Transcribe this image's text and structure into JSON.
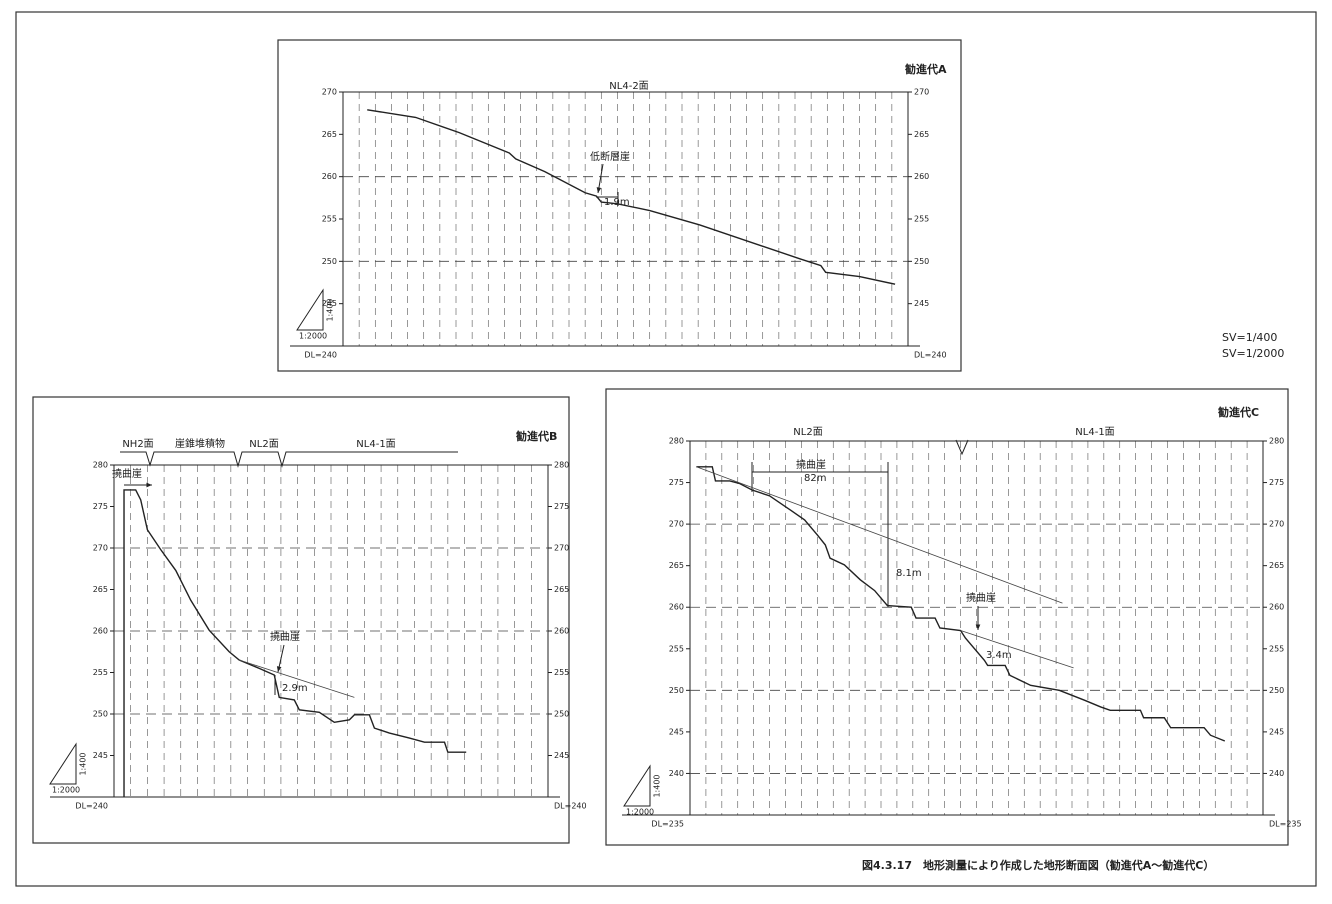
{
  "chart_data": [
    {
      "type": "line",
      "title": "勧進代A",
      "surface_labels": [
        "NL4-2面"
      ],
      "annotations": [
        "低断層崖",
        "1.9m"
      ],
      "scale_labels": [
        "1:400",
        "1:2000"
      ],
      "xlim": [
        0,
        35
      ],
      "ylim": [
        240,
        270
      ],
      "yticks": [
        {
          "value": 240,
          "label": "DL=240"
        },
        245,
        250,
        255,
        260,
        265,
        270
      ],
      "grid": true,
      "series": [
        {
          "color": "#222222",
          "x": [
            1.5,
            4.5,
            7.2,
            10.3,
            10.7,
            12.5,
            15,
            15.7,
            16,
            17,
            19,
            22.1,
            28.3,
            29.6,
            29.9,
            32,
            34.2
          ],
          "values": [
            267.9,
            267,
            265.2,
            262.8,
            262.1,
            260.6,
            258.1,
            257.7,
            257,
            256.8,
            256,
            254.3,
            250.3,
            249.5,
            248.7,
            248.2,
            247.3
          ]
        }
      ]
    },
    {
      "type": "line",
      "title": "勧進代B",
      "surface_labels": [
        "NH2面",
        "崖錐堆積物",
        "NL2面",
        "NL4-1面"
      ],
      "annotations": [
        "撓曲崖",
        "撓曲崖",
        "2.9m"
      ],
      "scale_labels": [
        "1:400",
        "1:2000"
      ],
      "xlim": [
        0,
        26
      ],
      "ylim": [
        240,
        280
      ],
      "yticks": [
        {
          "value": 240,
          "label": "DL=240"
        },
        245,
        250,
        255,
        260,
        265,
        270,
        275,
        280
      ],
      "grid": true,
      "series": [
        {
          "color": "#222222",
          "x": [
            0.6,
            0.6,
            1.3,
            1.6,
            2.0,
            2.8,
            3.7,
            4.6,
            5.7,
            6.9,
            7.5,
            8.7,
            9.6,
            9.8,
            9.9,
            10.8,
            11.1,
            12.3,
            13.2,
            14.1,
            14.4,
            15.3,
            15.6,
            16.5,
            17.7,
            18.6,
            19.8,
            20.0,
            21.1
          ],
          "values": [
            240,
            277,
            277,
            275.8,
            272.2,
            269.8,
            267.3,
            263.7,
            260.1,
            257.5,
            256.5,
            255.5,
            254.7,
            252.9,
            252.0,
            251.7,
            250.5,
            250.2,
            249.0,
            249.3,
            249.9,
            249.9,
            248.3,
            247.7,
            247.1,
            246.6,
            246.6,
            245.4,
            245.4
          ]
        },
        {
          "color": "#444444",
          "x": [
            7.5,
            14.4
          ],
          "values": [
            256.5,
            252.0
          ]
        }
      ]
    },
    {
      "type": "line",
      "title": "勧進代C",
      "surface_labels": [
        "NL2面",
        "NL4-1面"
      ],
      "annotations": [
        "撓曲崖",
        "82m",
        "8.1m",
        "撓曲崖",
        "3.4m"
      ],
      "scale_labels": [
        "1:400",
        "1:2000"
      ],
      "xlim": [
        0,
        36
      ],
      "ylim": [
        235,
        280
      ],
      "yticks": [
        {
          "value": 235,
          "label": "DL=235"
        },
        240,
        245,
        250,
        255,
        260,
        265,
        270,
        275,
        280
      ],
      "grid": true,
      "series": [
        {
          "color": "#222222",
          "x": [
            0.4,
            1.4,
            1.6,
            2.5,
            3.1,
            3.9,
            5.0,
            6.3,
            7.2,
            8.0,
            8.5,
            8.8,
            9.7,
            10.7,
            11.6,
            12.4,
            13.9,
            14.2,
            15.4,
            15.7,
            17.0,
            17.3,
            18.5,
            18.7,
            19.8,
            20.1,
            21.4,
            23.2,
            24.8,
            25.8,
            26.4,
            28.3,
            28.5,
            29.8,
            30.2,
            32.3,
            32.7,
            33.6
          ],
          "values": [
            276.9,
            276.9,
            275.2,
            275.2,
            274.9,
            274.1,
            273.4,
            271.7,
            270.5,
            268.7,
            267.5,
            265.9,
            265.1,
            263.3,
            262.0,
            260.2,
            260.0,
            258.7,
            258.7,
            257.5,
            257.2,
            256.3,
            253.6,
            253.0,
            253.0,
            251.8,
            250.6,
            250.0,
            248.8,
            248.0,
            247.6,
            247.6,
            246.7,
            246.7,
            245.5,
            245.5,
            244.6,
            243.9
          ]
        },
        {
          "color": "#444444",
          "x": [
            0.4,
            23.4
          ],
          "values": [
            276.9,
            260.5
          ]
        },
        {
          "color": "#444444",
          "x": [
            17.0,
            24.1
          ],
          "values": [
            257.2,
            252.7
          ]
        }
      ]
    }
  ],
  "scale_notes": [
    "SV=1/400",
    "SV=1/2000"
  ],
  "caption": "図4.3.17　地形測量により作成した地形断面図（勧進代A～勧進代C）"
}
